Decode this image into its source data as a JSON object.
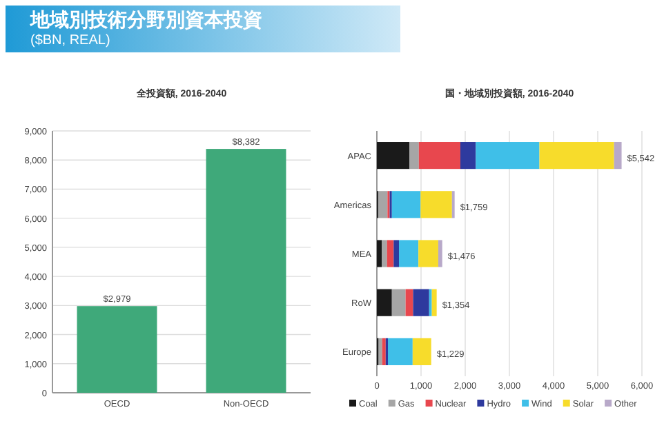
{
  "chart_data": [
    {
      "type": "bar",
      "title": "全投資額, 2016-2040",
      "annotations": [
        "地域別技術分野別資本投資",
        "($BN, REAL)"
      ],
      "categories": [
        "OECD",
        "Non-OECD"
      ],
      "values": [
        2979,
        8382
      ],
      "value_labels": [
        "$2,979",
        "$8,382"
      ],
      "color": "#3fa97a",
      "ylim": [
        0,
        9000
      ],
      "yticks": [
        {
          "value": 0,
          "label": "0"
        },
        {
          "value": 1000,
          "label": "1,000"
        },
        {
          "value": 2000,
          "label": "2,000"
        },
        {
          "value": 3000,
          "label": "3,000"
        },
        {
          "value": 4000,
          "label": "4,000"
        },
        {
          "value": 5000,
          "label": "5,000"
        },
        {
          "value": 6000,
          "label": "6,000"
        },
        {
          "value": 7000,
          "label": "7,000"
        },
        {
          "value": 8000,
          "label": "8,000"
        },
        {
          "value": 9000,
          "label": "9,000"
        }
      ],
      "grid": "y"
    },
    {
      "type": "bar",
      "orientation": "horizontal",
      "stacked": true,
      "title": "国・地域別投資額, 2016-2040",
      "categories": [
        "APAC",
        "Americas",
        "MEA",
        "RoW",
        "Europe"
      ],
      "series": [
        {
          "name": "Coal",
          "color": "#1a1a1a",
          "values": [
            740,
            30,
            110,
            340,
            40
          ]
        },
        {
          "name": "Gas",
          "color": "#a6a6a6",
          "values": [
            210,
            210,
            120,
            310,
            80
          ]
        },
        {
          "name": "Nuclear",
          "color": "#e8474e",
          "values": [
            940,
            50,
            150,
            170,
            80
          ]
        },
        {
          "name": "Hydro",
          "color": "#2e3a9e",
          "values": [
            350,
            50,
            120,
            364,
            50
          ]
        },
        {
          "name": "Wind",
          "color": "#3fbfe8",
          "values": [
            1440,
            650,
            440,
            60,
            560
          ]
        },
        {
          "name": "Solar",
          "color": "#f7dc2b",
          "values": [
            1690,
            710,
            450,
            110,
            420
          ]
        },
        {
          "name": "Other",
          "color": "#b8a9c9",
          "values": [
            170,
            60,
            90,
            null,
            null
          ]
        }
      ],
      "totals": [
        "$5,542",
        "$1,759",
        "$1,476",
        "$1,354",
        "$1,229"
      ],
      "xlim": [
        0,
        6000
      ],
      "xticks": [
        {
          "value": 0,
          "label": "0"
        },
        {
          "value": 1000,
          "label": "1,000"
        },
        {
          "value": 2000,
          "label": "2,000"
        },
        {
          "value": 3000,
          "label": "3,000"
        },
        {
          "value": 4000,
          "label": "4,000"
        },
        {
          "value": 5000,
          "label": "5,000"
        },
        {
          "value": 6000,
          "label": "6,000"
        }
      ],
      "grid": "x",
      "legend": "bottom"
    }
  ]
}
